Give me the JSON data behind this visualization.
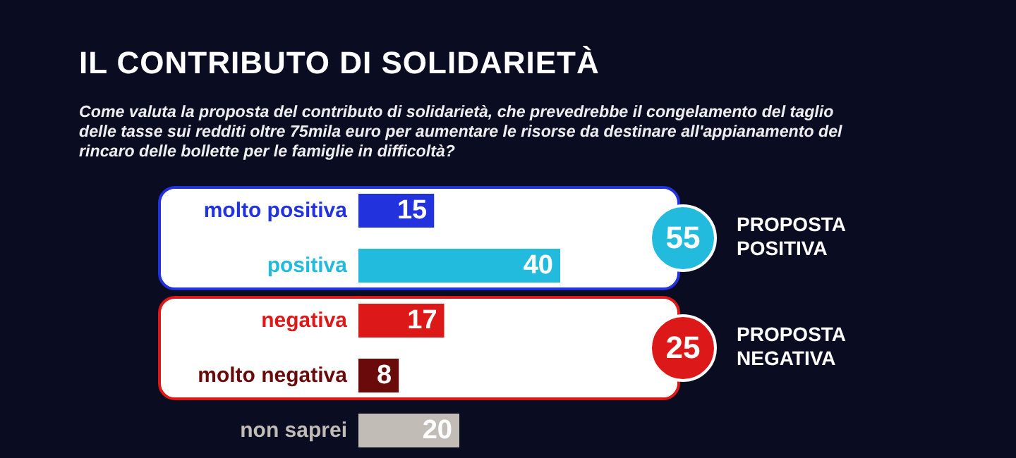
{
  "chart_data": {
    "type": "bar",
    "orientation": "horizontal",
    "title": "IL CONTRIBUTO DI SOLIDARIETÀ",
    "subtitle": "Come valuta la proposta del contributo di solidarietà, che prevedrebbe il congelamento del taglio delle tasse sui redditi oltre 75mila euro per aumentare le risorse da destinare all'appianamento del rincaro delle bollette per le famiglie in difficoltà?",
    "categories": [
      "molto positiva",
      "positiva",
      "negativa",
      "molto negativa",
      "non saprei"
    ],
    "values": [
      15,
      40,
      17,
      8,
      20
    ],
    "colors": [
      "#2233dd",
      "#22bbdd",
      "#dd1818",
      "#6a0a0a",
      "#c2bcb6"
    ],
    "data_labels": true,
    "annotations": [
      "55",
      "PROPOSTA POSITIVA",
      "25",
      "PROPOSTA NEGATIVA"
    ]
  }
}
